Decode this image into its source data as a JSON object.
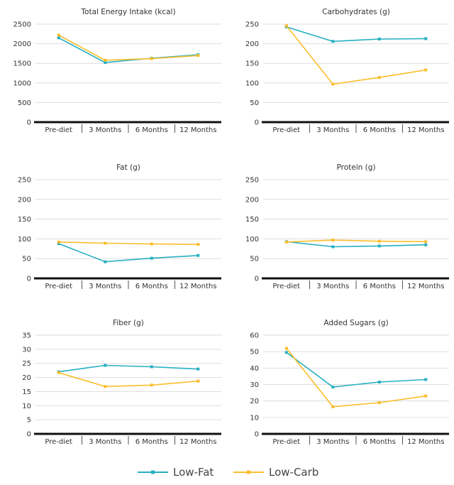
{
  "colors": {
    "low_fat": "#26AFC1",
    "low_carb": "#F9BE2C",
    "grid": "#DDDDDD",
    "axis": "#111111",
    "text": "#333333"
  },
  "legend": {
    "series": [
      "Low-Fat",
      "Low-Carb"
    ]
  },
  "chart_data": [
    {
      "type": "line",
      "title": "Total Energy Intake (kcal)",
      "categories": [
        "Pre-diet",
        "3 Months",
        "6 Months",
        "12 Months"
      ],
      "ylim": [
        0,
        2500
      ],
      "yticks": [
        0,
        500,
        1000,
        1500,
        2000,
        2500
      ],
      "series": [
        {
          "name": "Low-Fat",
          "values": [
            2150,
            1520,
            1630,
            1720
          ]
        },
        {
          "name": "Low-Carb",
          "values": [
            2220,
            1580,
            1620,
            1700
          ]
        }
      ]
    },
    {
      "type": "line",
      "title": "Carbohydrates (g)",
      "categories": [
        "Pre-diet",
        "3 Months",
        "6 Months",
        "12 Months"
      ],
      "ylim": [
        0,
        250
      ],
      "yticks": [
        0,
        50,
        100,
        150,
        200,
        250
      ],
      "series": [
        {
          "name": "Low-Fat",
          "values": [
            243,
            206,
            212,
            213
          ]
        },
        {
          "name": "Low-Carb",
          "values": [
            246,
            97,
            114,
            133
          ]
        }
      ]
    },
    {
      "type": "line",
      "title": "Fat (g)",
      "categories": [
        "Pre-diet",
        "3 Months",
        "6 Months",
        "12 Months"
      ],
      "ylim": [
        0,
        250
      ],
      "yticks": [
        0,
        50,
        100,
        150,
        200,
        250
      ],
      "series": [
        {
          "name": "Low-Fat",
          "values": [
            88,
            42,
            51,
            58
          ]
        },
        {
          "name": "Low-Carb",
          "values": [
            92,
            89,
            87,
            86
          ]
        }
      ]
    },
    {
      "type": "line",
      "title": "Protein (g)",
      "categories": [
        "Pre-diet",
        "3 Months",
        "6 Months",
        "12 Months"
      ],
      "ylim": [
        0,
        250
      ],
      "yticks": [
        0,
        50,
        100,
        150,
        200,
        250
      ],
      "series": [
        {
          "name": "Low-Fat",
          "values": [
            93,
            80,
            82,
            85
          ]
        },
        {
          "name": "Low-Carb",
          "values": [
            92,
            97,
            94,
            93
          ]
        }
      ]
    },
    {
      "type": "line",
      "title": "Fiber (g)",
      "categories": [
        "Pre-diet",
        "3 Months",
        "6 Months",
        "12 Months"
      ],
      "ylim": [
        0,
        35
      ],
      "yticks": [
        0,
        5,
        10,
        15,
        20,
        25,
        30,
        35
      ],
      "series": [
        {
          "name": "Low-Fat",
          "values": [
            22,
            24.3,
            23.8,
            23
          ]
        },
        {
          "name": "Low-Carb",
          "values": [
            21.7,
            16.8,
            17.3,
            18.7
          ]
        }
      ]
    },
    {
      "type": "line",
      "title": "Added Sugars (g)",
      "categories": [
        "Pre-diet",
        "3 Months",
        "6 Months",
        "12 Months"
      ],
      "ylim": [
        0,
        60
      ],
      "yticks": [
        0,
        10,
        20,
        30,
        40,
        50,
        60
      ],
      "series": [
        {
          "name": "Low-Fat",
          "values": [
            49.5,
            28.5,
            31.5,
            33
          ]
        },
        {
          "name": "Low-Carb",
          "values": [
            52,
            16.5,
            19,
            23
          ]
        }
      ]
    }
  ]
}
